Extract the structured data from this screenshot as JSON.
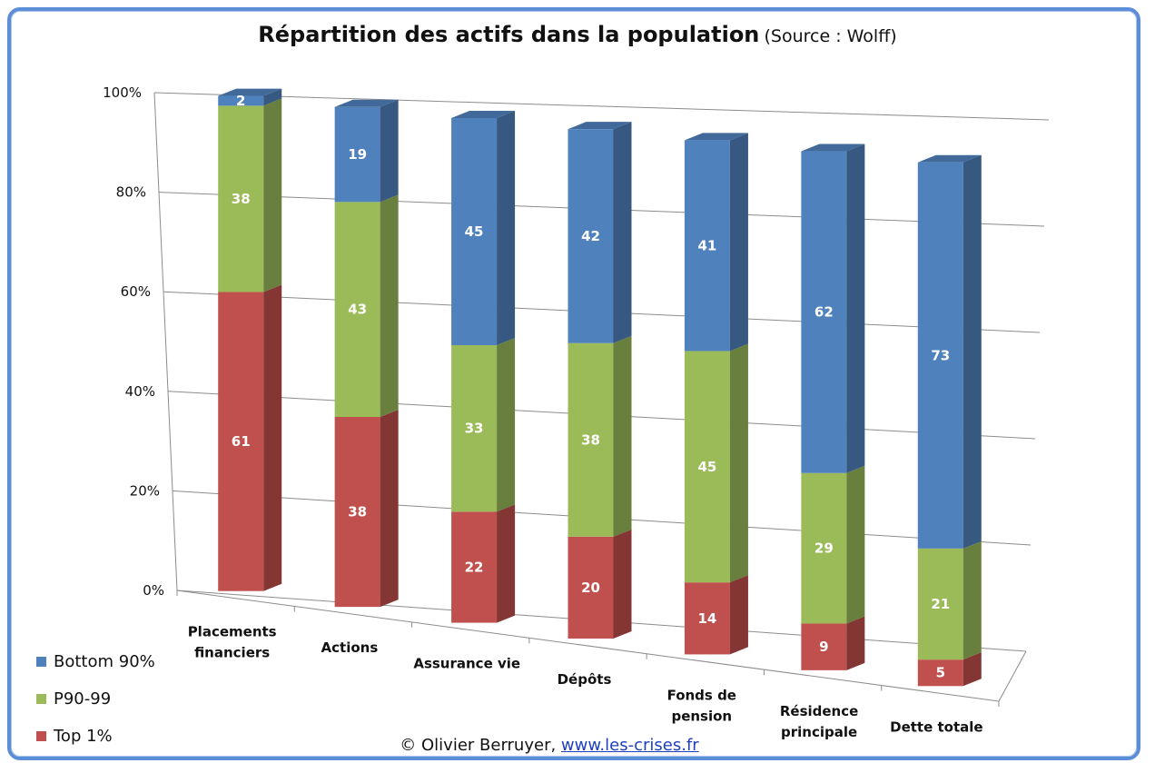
{
  "title": {
    "main": "Répartition des actifs dans la population",
    "sub": "(Source : Wolff)"
  },
  "credit": {
    "text": "© Olivier Berruyer,",
    "link": "www.les-crises.fr"
  },
  "colors": {
    "bottom90": "#4f81bd",
    "p9099": "#9bbb59",
    "top1": "#c0504d",
    "frame": "#5b8ed6"
  },
  "chart_data": {
    "type": "bar",
    "stacked": true,
    "percent": true,
    "three_d": true,
    "title": "Répartition des actifs dans la population (Source : Wolff)",
    "categories": [
      [
        "Placements",
        "financiers"
      ],
      [
        "Actions"
      ],
      [
        "Assurance vie"
      ],
      [
        "Dépôts"
      ],
      [
        "Fonds de",
        "pension"
      ],
      [
        "Résidence",
        "principale"
      ],
      [
        "Dette totale"
      ]
    ],
    "series": [
      {
        "name": "Top 1%",
        "color": "#c0504d",
        "values": [
          61,
          38,
          22,
          20,
          14,
          9,
          5
        ]
      },
      {
        "name": "P90-99",
        "color": "#9bbb59",
        "values": [
          38,
          43,
          33,
          38,
          45,
          29,
          21
        ]
      },
      {
        "name": "Bottom 90%",
        "color": "#4f81bd",
        "values": [
          2,
          19,
          45,
          42,
          41,
          62,
          73
        ]
      }
    ],
    "ylim": [
      0,
      100
    ],
    "yticks": [
      "0%",
      "20%",
      "40%",
      "60%",
      "80%",
      "100%"
    ],
    "legend_position": "bottom-left",
    "legend": [
      "Bottom 90%",
      "P90-99",
      "Top 1%"
    ]
  }
}
